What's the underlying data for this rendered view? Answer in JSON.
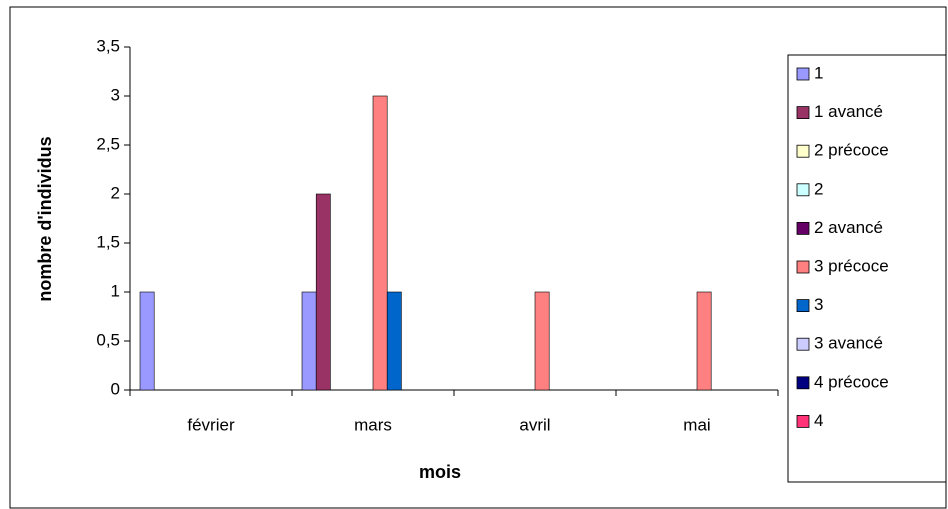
{
  "chart_data": {
    "type": "bar",
    "categories": [
      "février",
      "mars",
      "avril",
      "mai"
    ],
    "series": [
      {
        "name": "1",
        "color": "#9999ff",
        "values": [
          1,
          1,
          0,
          0
        ]
      },
      {
        "name": "1 avancé",
        "color": "#993366",
        "values": [
          0,
          2,
          0,
          0
        ]
      },
      {
        "name": "2 précoce",
        "color": "#ffffcc",
        "values": [
          0,
          0,
          0,
          0
        ]
      },
      {
        "name": "2",
        "color": "#ccffff",
        "values": [
          0,
          0,
          0,
          0
        ]
      },
      {
        "name": "2 avancé",
        "color": "#660066",
        "values": [
          0,
          0,
          0,
          0
        ]
      },
      {
        "name": "3 précoce",
        "color": "#ff8080",
        "values": [
          0,
          3,
          1,
          1
        ]
      },
      {
        "name": "3",
        "color": "#0066cc",
        "values": [
          0,
          1,
          0,
          0
        ]
      },
      {
        "name": "3 avancé",
        "color": "#ccccff",
        "values": [
          0,
          0,
          0,
          0
        ]
      },
      {
        "name": "4 précoce",
        "color": "#000080",
        "values": [
          0,
          0,
          0,
          0
        ]
      },
      {
        "name": "4",
        "color": "#ff3377",
        "values": [
          0,
          0,
          0,
          0
        ]
      }
    ],
    "xlabel": "mois",
    "ylabel": "nombre d'individus",
    "ylim": [
      0,
      3.5
    ],
    "yticks": [
      0,
      {
        "value": 0.5,
        "label": "0,5"
      },
      1,
      {
        "value": 1.5,
        "label": "1,5"
      },
      2,
      {
        "value": 2.5,
        "label": "2,5"
      },
      3,
      {
        "value": 3.5,
        "label": "3,5"
      }
    ],
    "legend": "right"
  }
}
